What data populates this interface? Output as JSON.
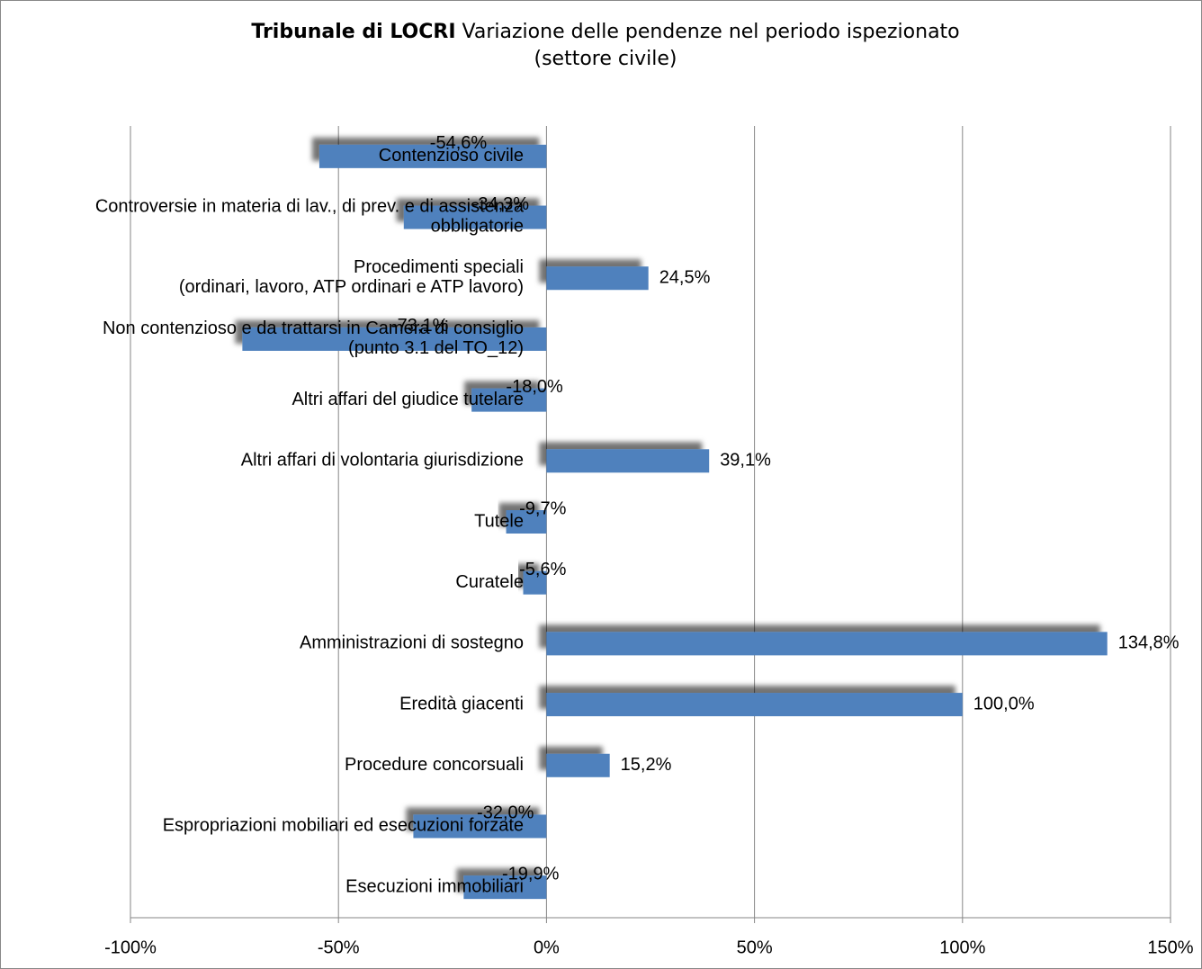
{
  "chart_data": {
    "type": "barh",
    "title": "Tribunale di LOCRI",
    "subtitle": [
      "Variazione delle pendenze nel periodo ispezionato",
      "(settore civile)"
    ],
    "categories": [
      "Contenzioso civile",
      "Controversie in materia di lav., di prev. e di assistenza\nobbligatorie",
      "Procedimenti speciali\n(ordinari, lavoro, ATP ordinari e ATP lavoro)",
      "Non contenzioso e da trattarsi in Camera di consiglio\n(punto 3.1 del TO_12)",
      "Altri affari del giudice tutelare",
      "Altri affari di volontaria giurisdizione",
      "Tutele",
      "Curatele",
      "Amministrazioni di sostegno",
      "Eredità giacenti",
      "Procedure concorsuali",
      "Espropriazioni mobiliari ed esecuzioni forzate",
      "Esecuzioni immobiliari"
    ],
    "values": [
      -54.6,
      -34.3,
      24.5,
      -73.1,
      -18.0,
      39.1,
      -9.7,
      -5.6,
      134.8,
      100.0,
      15.2,
      -32.0,
      -19.9
    ],
    "value_labels": [
      "-54,6%",
      "-34,3%",
      "24,5%",
      "-73,1%",
      "-18,0%",
      "39,1%",
      "-9,7%",
      "-5,6%",
      "134,8%",
      "100,0%",
      "15,2%",
      "-32,0%",
      "-19,9%"
    ],
    "color": "#4f81bd",
    "xlim": [
      -100,
      150
    ],
    "xticks": [
      {
        "value": -100,
        "label": "-100%"
      },
      {
        "value": -50,
        "label": "-50%"
      },
      {
        "value": 0,
        "label": "0%"
      },
      {
        "value": 50,
        "label": "50%"
      },
      {
        "value": 100,
        "label": "100%"
      },
      {
        "value": 150,
        "label": "150%"
      }
    ],
    "grid": true
  }
}
